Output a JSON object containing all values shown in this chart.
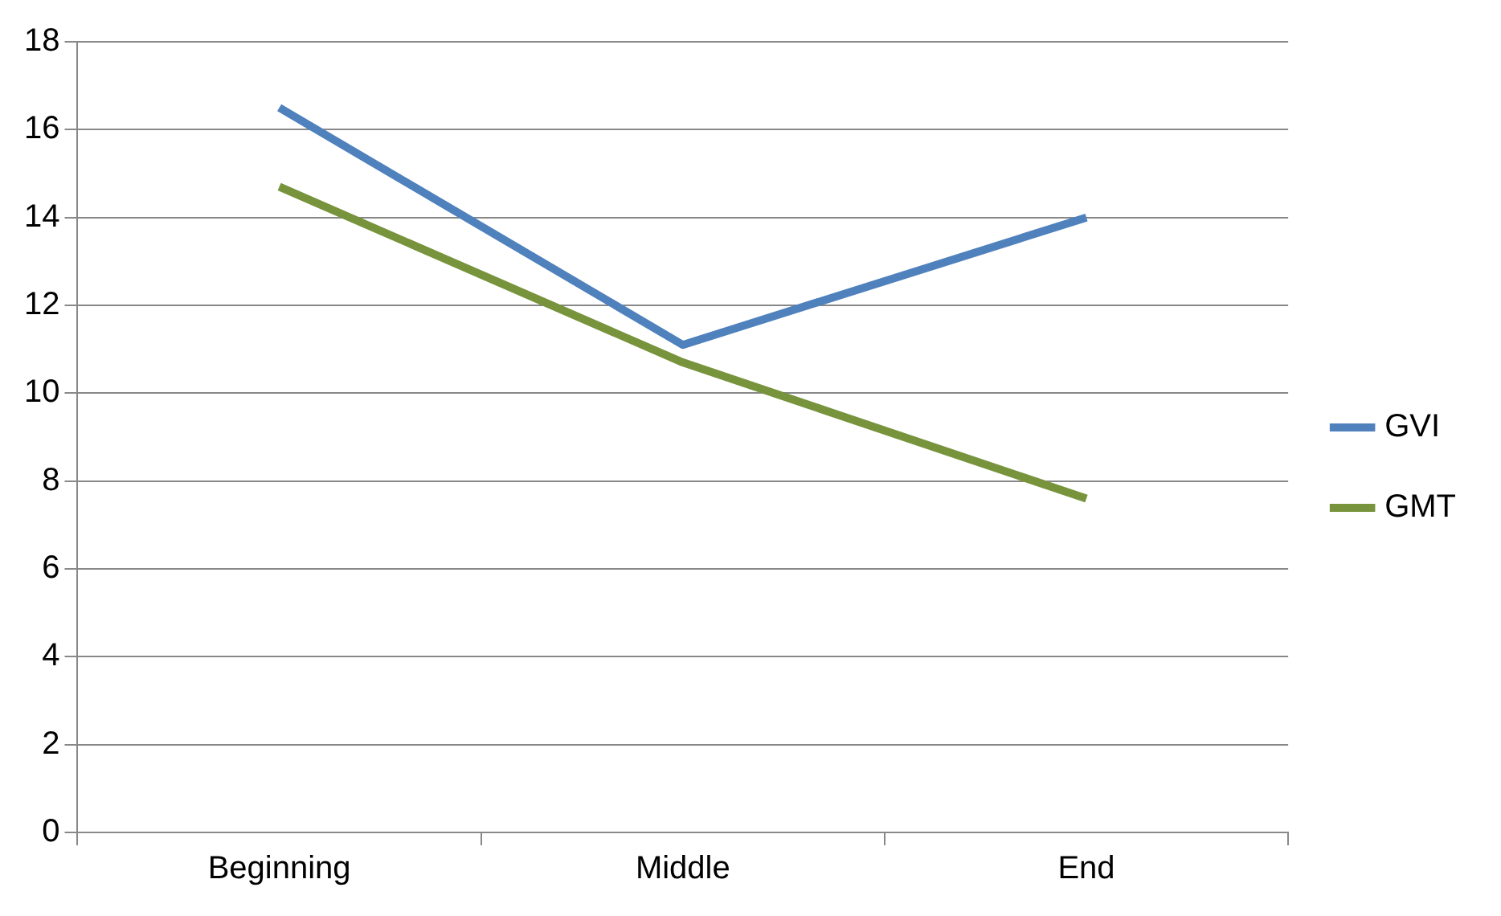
{
  "chart_data": {
    "type": "line",
    "categories": [
      "Beginning",
      "Middle",
      "End"
    ],
    "series": [
      {
        "name": "GVI",
        "color": "#4f81bd",
        "values": [
          16.5,
          11.1,
          14.0
        ]
      },
      {
        "name": "GMT",
        "color": "#77933c",
        "values": [
          14.7,
          10.7,
          7.6
        ]
      }
    ],
    "ylim": [
      0,
      18
    ],
    "yticks": [
      0,
      2,
      4,
      6,
      8,
      10,
      12,
      14,
      16,
      18
    ],
    "grid": "y",
    "legend": "right",
    "marker": "none"
  }
}
